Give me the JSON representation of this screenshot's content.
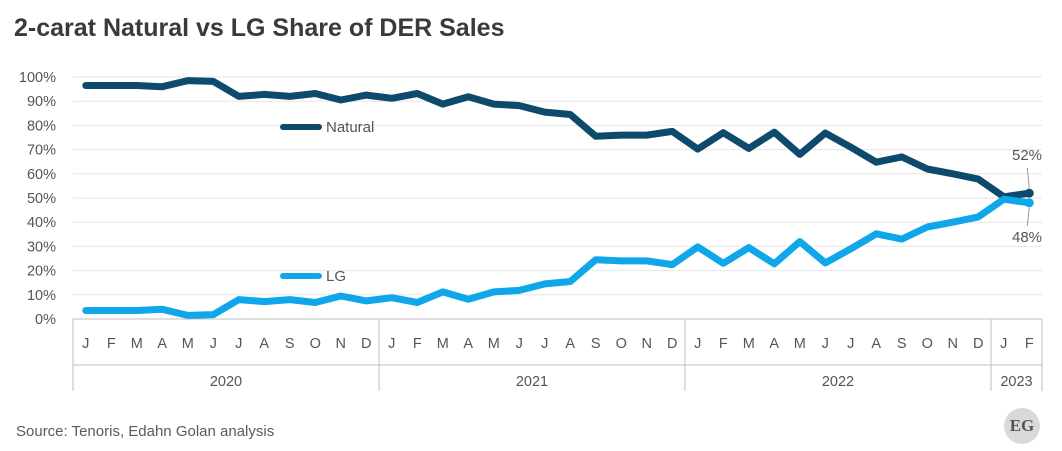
{
  "title": "2-carat Natural vs LG Share of DER Sales",
  "source": "Source: Tenoris, Edahn Golan analysis",
  "logo_text": "EG",
  "colors": {
    "natural": "#0d4a6b",
    "lg": "#0fa7ea",
    "grid": "#e6e6e6",
    "axis": "#bfbfbf"
  },
  "chart_data": {
    "type": "line",
    "title": "2-carat Natural vs LG Share of DER Sales",
    "ylim": [
      0,
      100
    ],
    "y_ticks": [
      "0%",
      "10%",
      "20%",
      "30%",
      "40%",
      "50%",
      "60%",
      "70%",
      "80%",
      "90%",
      "100%"
    ],
    "categories": [
      "J",
      "F",
      "M",
      "A",
      "M",
      "J",
      "J",
      "A",
      "S",
      "O",
      "N",
      "D",
      "J",
      "F",
      "M",
      "A",
      "M",
      "J",
      "J",
      "A",
      "S",
      "O",
      "N",
      "D",
      "J",
      "F",
      "M",
      "A",
      "M",
      "J",
      "J",
      "A",
      "S",
      "O",
      "N",
      "D",
      "J",
      "F"
    ],
    "years": [
      "2020",
      "2021",
      "2022",
      "2023"
    ],
    "grid": true,
    "legend_position": "inside-left",
    "series": [
      {
        "name": "Natural",
        "values": [
          96.5,
          96.5,
          96.5,
          96,
          98.5,
          98.2,
          92,
          92.8,
          92,
          93.2,
          90.5,
          92.5,
          91.2,
          93.2,
          88.8,
          91.8,
          88.8,
          88.2,
          85.5,
          84.5,
          75.5,
          76,
          76,
          77.5,
          70.2,
          77,
          70.5,
          77.2,
          68,
          76.8,
          71,
          64.8,
          67,
          62,
          60,
          57.8,
          50.5,
          52
        ]
      },
      {
        "name": "LG",
        "values": [
          3.5,
          3.5,
          3.5,
          4,
          1.5,
          1.8,
          8,
          7.2,
          8,
          6.8,
          9.5,
          7.5,
          8.8,
          6.8,
          11.2,
          8.2,
          11.2,
          11.8,
          14.5,
          15.5,
          24.5,
          24,
          24,
          22.5,
          29.8,
          23,
          29.5,
          22.8,
          32,
          23.2,
          29,
          35.2,
          33,
          38,
          40,
          42.2,
          49.5,
          48
        ]
      }
    ],
    "end_labels": {
      "natural": "52%",
      "lg": "48%"
    }
  }
}
